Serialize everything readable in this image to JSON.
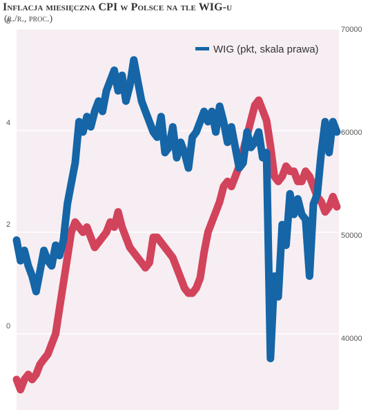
{
  "header": {
    "title": "Inflacja miesięczna CPI w Polsce na tle WIG-u",
    "subtitle": "(r./r., proc.)"
  },
  "chart_data": {
    "type": "line",
    "title": "Inflacja miesięczna CPI w Polsce na tle WIG-u",
    "subtitle": "(r./r., proc.)",
    "y_left": {
      "ticks": [
        0,
        2,
        4,
        6
      ],
      "tick_labels": [
        "0",
        "2",
        "4",
        "6"
      ],
      "ylim": [
        -1.5,
        6
      ]
    },
    "y_right": {
      "ticks": [
        40000,
        50000,
        60000,
        70000
      ],
      "tick_labels": [
        "40000",
        "50000",
        "60000",
        "70000"
      ],
      "ylim": [
        33000,
        70000
      ]
    },
    "legend": {
      "position": "top-right",
      "entries": [
        "WIG (pkt, skala prawa)"
      ]
    },
    "grid": "horizontal",
    "colors": {
      "cpi": "#d2435c",
      "wig": "#1565a7",
      "background": "#f6eef2",
      "grid": "#ffffff"
    },
    "series": [
      {
        "key": "cpi",
        "axis": "left",
        "values": [
          -0.9,
          -1.1,
          -0.9,
          -0.8,
          -0.9,
          -0.8,
          -0.6,
          -0.5,
          -0.4,
          -0.2,
          0.0,
          0.5,
          1.0,
          1.5,
          2.0,
          2.2,
          2.1,
          2.0,
          2.1,
          1.9,
          1.7,
          1.8,
          1.9,
          2.0,
          2.2,
          2.1,
          2.4,
          2.1,
          1.9,
          1.7,
          1.6,
          1.5,
          1.4,
          1.3,
          1.4,
          1.9,
          1.9,
          1.8,
          1.7,
          1.6,
          1.5,
          1.3,
          1.1,
          0.9,
          0.8,
          0.8,
          0.9,
          1.1,
          1.6,
          2.0,
          2.2,
          2.4,
          2.6,
          2.9,
          3.0,
          2.9,
          3.1,
          3.3,
          3.6,
          3.9,
          4.2,
          4.5,
          4.6,
          4.4,
          4.2,
          3.7,
          3.1,
          3.0,
          3.1,
          3.3,
          3.2,
          3.2,
          3.0,
          3.0,
          3.2,
          3.1,
          2.9,
          2.7,
          2.6,
          2.4,
          2.5,
          2.7,
          2.5
        ]
      },
      {
        "key": "wig",
        "name": "WIG (pkt, skala prawa)",
        "axis": "right",
        "values": [
          49500,
          47500,
          48500,
          47000,
          46000,
          44500,
          46500,
          48500,
          47500,
          47000,
          49000,
          48000,
          49500,
          53000,
          55000,
          57000,
          61000,
          60000,
          61500,
          60500,
          62000,
          63000,
          62000,
          64000,
          65000,
          66000,
          64000,
          65500,
          63000,
          64500,
          67000,
          65000,
          63000,
          62000,
          61000,
          60000,
          59500,
          61500,
          58000,
          58500,
          60500,
          57500,
          59000,
          58000,
          56500,
          59500,
          60000,
          61000,
          62000,
          61000,
          62000,
          60000,
          62500,
          61000,
          59000,
          60500,
          58500,
          56500,
          57000,
          60000,
          58500,
          59000,
          60000,
          57500,
          58000,
          38000,
          46000,
          44000,
          51000,
          49000,
          54000,
          52000,
          53500,
          52000,
          51500,
          46000,
          53000,
          54000,
          58000,
          61000,
          58000,
          61000,
          60000
        ]
      }
    ]
  }
}
